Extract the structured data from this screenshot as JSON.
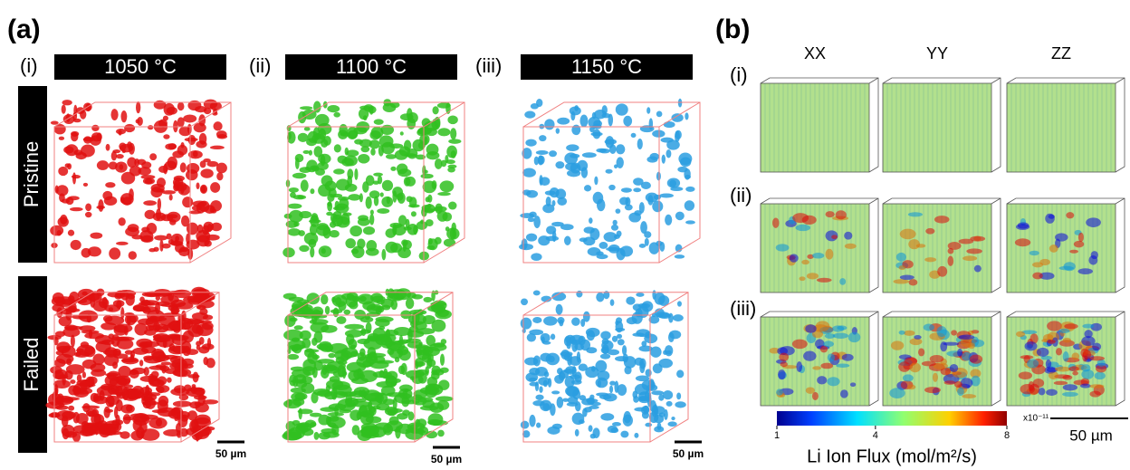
{
  "panel_a": {
    "label": "(a)",
    "columns": [
      {
        "roman": "(i)",
        "temperature": "1050 °C"
      },
      {
        "roman": "(ii)",
        "temperature": "1100 °C"
      },
      {
        "roman": "(iii)",
        "temperature": "1150 °C"
      }
    ],
    "rows": [
      "Pristine",
      "Failed"
    ],
    "scale_bar": "50 µm"
  },
  "panel_b": {
    "label": "(b)",
    "columns": [
      "XX",
      "YY",
      "ZZ"
    ],
    "rows": [
      "(i)",
      "(ii)",
      "(iii)"
    ],
    "colorbar": {
      "title": "Li Ion Flux (mol/m²/s)",
      "range": [
        1,
        8
      ],
      "ticks": [
        1,
        4,
        8
      ],
      "multiplier": "x10⁻¹¹"
    },
    "scale_bar": "50 µm"
  }
}
